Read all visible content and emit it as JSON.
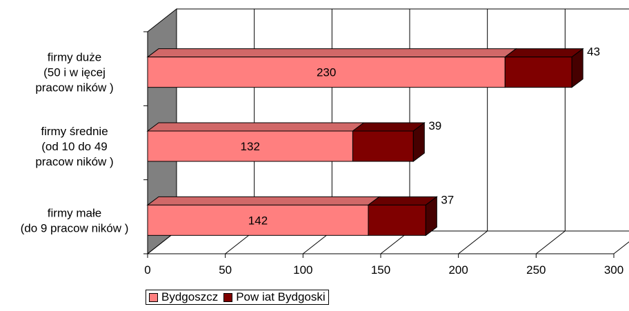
{
  "chart_data": {
    "type": "bar",
    "orientation": "horizontal",
    "stacked": true,
    "three_d": true,
    "categories": [
      [
        "firmy małe",
        "(do 9 pracow ników )"
      ],
      [
        "firmy średnie",
        "(od 10 do 49",
        "pracow ników )"
      ],
      [
        "firmy duże",
        "(50 i w ięcej",
        "pracow ników )"
      ]
    ],
    "series": [
      {
        "name": "Bydgoszcz",
        "values": [
          142,
          132,
          230
        ],
        "color": "#FF7F7F"
      },
      {
        "name": "Pow iat Bydgoski",
        "values": [
          37,
          39,
          43
        ],
        "color": "#7F0000"
      }
    ],
    "xlim": [
      0,
      300
    ],
    "x_ticks": [
      "0",
      "50",
      "100",
      "150",
      "200",
      "250",
      "300"
    ],
    "grid": true,
    "legend_position": "bottom-left",
    "title": "",
    "xlabel": "",
    "ylabel": ""
  }
}
